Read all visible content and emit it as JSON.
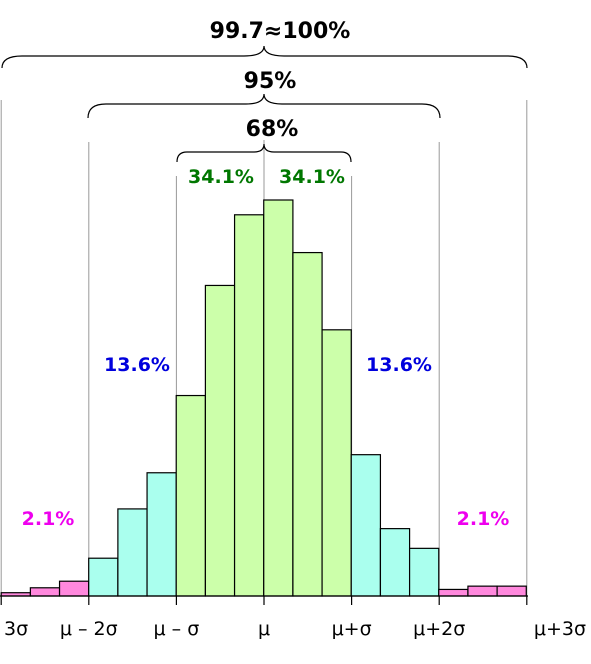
{
  "chart_data": {
    "type": "bar",
    "title": "",
    "xlabel": "",
    "ylabel": "",
    "x_tick_labels": [
      "3σ",
      "μ – 2σ",
      "μ – σ",
      "μ",
      "μ+σ",
      "μ+2σ",
      "μ+3σ"
    ],
    "bins": [
      {
        "band": "outer",
        "value": 2
      },
      {
        "band": "outer",
        "value": 5
      },
      {
        "band": "outer",
        "value": 9
      },
      {
        "band": "mid",
        "value": 23
      },
      {
        "band": "mid",
        "value": 53
      },
      {
        "band": "mid",
        "value": 75
      },
      {
        "band": "inner",
        "value": 122
      },
      {
        "band": "inner",
        "value": 189
      },
      {
        "band": "inner",
        "value": 232
      },
      {
        "band": "inner",
        "value": 241
      },
      {
        "band": "inner",
        "value": 209
      },
      {
        "band": "inner",
        "value": 162
      },
      {
        "band": "mid",
        "value": 86
      },
      {
        "band": "mid",
        "value": 41
      },
      {
        "band": "mid",
        "value": 29
      },
      {
        "band": "outer",
        "value": 4
      },
      {
        "band": "outer",
        "value": 6
      },
      {
        "band": "outer",
        "value": 6
      }
    ],
    "bin_width_sigma": 0.333,
    "first_bin_start_sigma": -3,
    "ylim": [
      0,
      260
    ],
    "grid": false,
    "band_percent_labels": {
      "inner_left": "34.1%",
      "inner_right": "34.1%",
      "mid_left": "13.6%",
      "mid_right": "13.6%",
      "outer_left": "2.1%",
      "outer_right": "2.1%"
    },
    "brace_labels": [
      "68%",
      "95%",
      "99.7≈100%"
    ],
    "colors": {
      "inner": "#ccffaa",
      "mid": "#aaffee",
      "outer": "#ff88dd",
      "inner_text": "#007700",
      "mid_text": "#0000dd",
      "outer_text": "#ee00ee",
      "edge": "#000000"
    }
  }
}
